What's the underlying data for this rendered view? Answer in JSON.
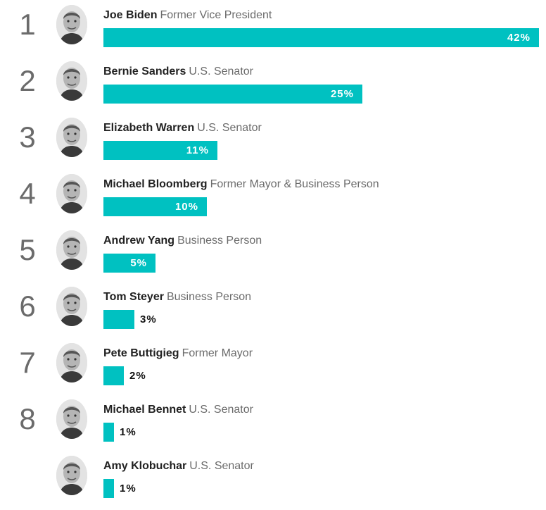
{
  "chart_data": {
    "type": "bar",
    "orientation": "horizontal",
    "bar_color": "#00c1c1",
    "value_suffix": "%",
    "xlim": [
      0,
      42
    ],
    "candidates": [
      {
        "rank": "1",
        "name": "Joe Biden",
        "title": "Former Vice President",
        "value": 42,
        "label": "42%"
      },
      {
        "rank": "2",
        "name": "Bernie Sanders",
        "title": "U.S. Senator",
        "value": 25,
        "label": "25%"
      },
      {
        "rank": "3",
        "name": "Elizabeth Warren",
        "title": "U.S. Senator",
        "value": 11,
        "label": "11%"
      },
      {
        "rank": "4",
        "name": "Michael Bloomberg",
        "title": "Former Mayor & Business Person",
        "value": 10,
        "label": "10%"
      },
      {
        "rank": "5",
        "name": "Andrew Yang",
        "title": "Business Person",
        "value": 5,
        "label": "5%"
      },
      {
        "rank": "6",
        "name": "Tom Steyer",
        "title": "Business Person",
        "value": 3,
        "label": "3%"
      },
      {
        "rank": "7",
        "name": "Pete Buttigieg",
        "title": "Former Mayor",
        "value": 2,
        "label": "2%"
      },
      {
        "rank": "8",
        "name": "Michael Bennet",
        "title": "U.S. Senator",
        "value": 1,
        "label": "1%"
      },
      {
        "rank": "",
        "name": "Amy Klobuchar",
        "title": "U.S. Senator",
        "value": 1,
        "label": "1%"
      }
    ]
  }
}
